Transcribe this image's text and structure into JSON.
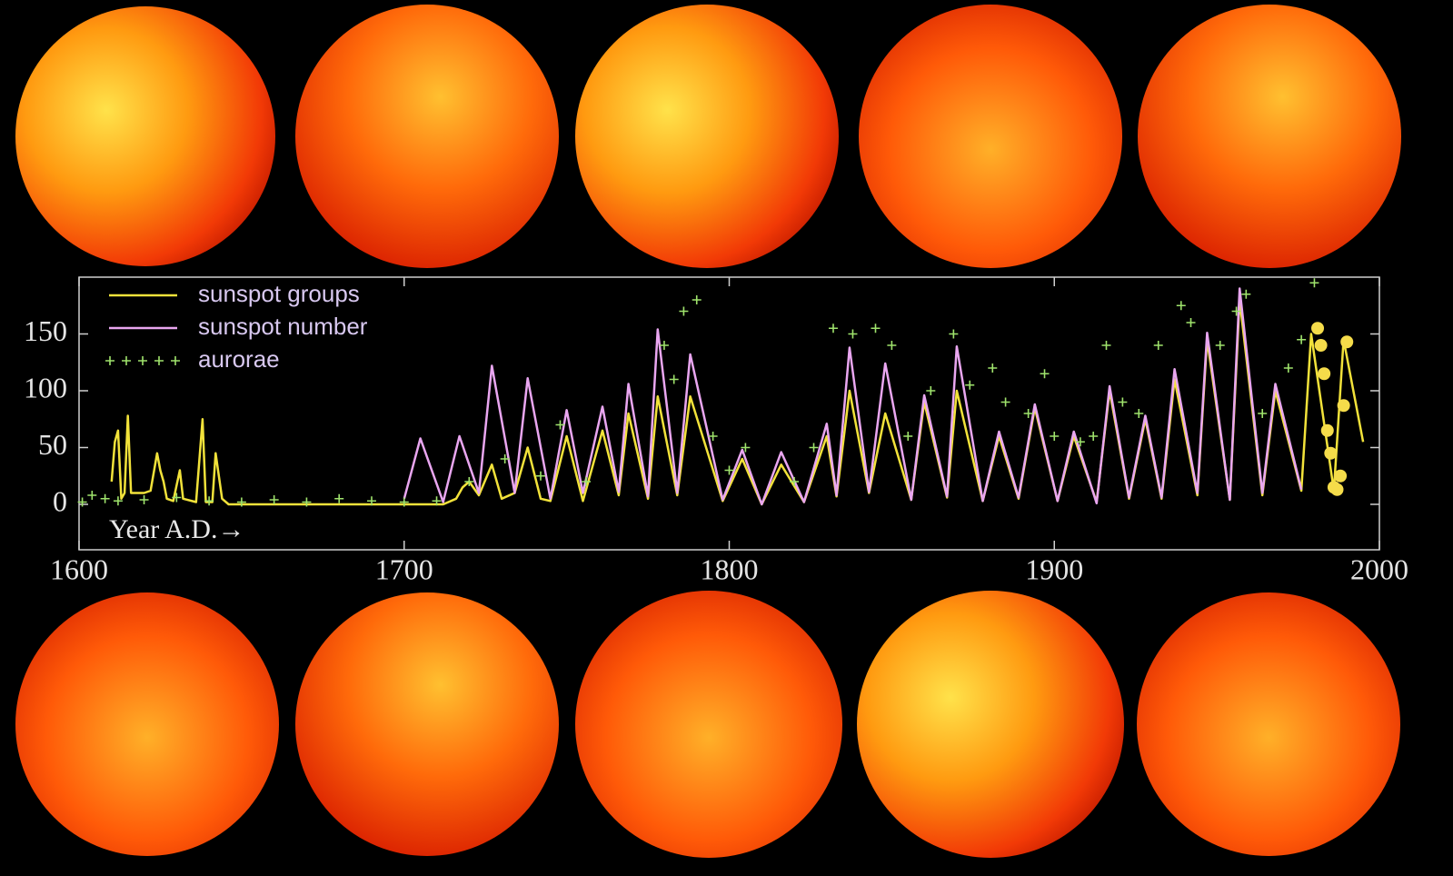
{
  "chart_data": {
    "type": "line",
    "xlabel": "Year A.D.→",
    "xlim": [
      1600,
      2000
    ],
    "xticks": [
      1600,
      1700,
      1800,
      1900,
      2000
    ],
    "ylim": [
      -40,
      200
    ],
    "yticks": [
      0,
      50,
      100,
      150
    ],
    "series": [
      {
        "name": "sunspot groups",
        "type": "line",
        "color": "#f2e23a",
        "x": [
          1610,
          1611,
          1612,
          1613,
          1614,
          1615,
          1616,
          1618,
          1620,
          1622,
          1624,
          1625,
          1626,
          1627,
          1629,
          1631,
          1632,
          1636,
          1638,
          1639,
          1641,
          1642,
          1644,
          1646,
          1700,
          1712,
          1716,
          1718,
          1720,
          1723,
          1727,
          1730,
          1734,
          1738,
          1742,
          1745,
          1750,
          1755,
          1761,
          1766,
          1769,
          1775,
          1778,
          1784,
          1788,
          1798,
          1804,
          1810,
          1816,
          1823,
          1830,
          1833,
          1837,
          1843,
          1848,
          1856,
          1860,
          1867,
          1870,
          1878,
          1883,
          1889,
          1894,
          1901,
          1906,
          1913,
          1917,
          1923,
          1928,
          1933,
          1937,
          1944,
          1947,
          1954,
          1957,
          1964,
          1968,
          1976,
          1979,
          1986,
          1989,
          1995
        ],
        "values": [
          20,
          55,
          65,
          5,
          10,
          78,
          10,
          10,
          10,
          12,
          45,
          30,
          20,
          5,
          3,
          30,
          5,
          2,
          75,
          2,
          2,
          45,
          5,
          0,
          0,
          0,
          5,
          15,
          20,
          8,
          35,
          5,
          10,
          50,
          5,
          3,
          60,
          3,
          65,
          8,
          80,
          5,
          95,
          8,
          95,
          3,
          40,
          0,
          35,
          2,
          60,
          7,
          100,
          10,
          80,
          4,
          90,
          6,
          100,
          3,
          60,
          5,
          85,
          3,
          60,
          2,
          100,
          5,
          75,
          5,
          110,
          8,
          145,
          4,
          180,
          8,
          100,
          12,
          150,
          12,
          145,
          55
        ]
      },
      {
        "name": "sunspot number",
        "type": "line",
        "color": "#e9a6f0",
        "x": [
          1700,
          1705,
          1712,
          1717,
          1723,
          1727,
          1734,
          1738,
          1745,
          1750,
          1755,
          1761,
          1766,
          1769,
          1775,
          1778,
          1784,
          1788,
          1798,
          1804,
          1810,
          1816,
          1823,
          1830,
          1833,
          1837,
          1843,
          1848,
          1856,
          1860,
          1867,
          1870,
          1878,
          1883,
          1889,
          1894,
          1901,
          1906,
          1913,
          1917,
          1923,
          1928,
          1933,
          1937,
          1944,
          1947,
          1954,
          1957,
          1964,
          1968,
          1976
        ],
        "values": [
          5,
          58,
          2,
          60,
          10,
          122,
          10,
          111,
          5,
          83,
          10,
          86,
          11,
          106,
          7,
          154,
          10,
          132,
          4,
          48,
          0,
          46,
          2,
          71,
          8,
          138,
          11,
          124,
          4,
          96,
          7,
          139,
          3,
          64,
          6,
          88,
          3,
          64,
          1,
          104,
          6,
          78,
          6,
          119,
          10,
          151,
          4,
          190,
          10,
          106,
          13
        ]
      },
      {
        "name": "aurorae",
        "type": "scatter",
        "color": "#9fe36c",
        "x": [
          1601,
          1604,
          1608,
          1612,
          1620,
          1630,
          1640,
          1650,
          1660,
          1670,
          1680,
          1690,
          1700,
          1710,
          1720,
          1731,
          1742,
          1748,
          1756,
          1780,
          1783,
          1786,
          1790,
          1795,
          1800,
          1805,
          1820,
          1826,
          1832,
          1838,
          1845,
          1850,
          1855,
          1862,
          1869,
          1874,
          1881,
          1885,
          1892,
          1897,
          1900,
          1908,
          1912,
          1916,
          1921,
          1926,
          1932,
          1939,
          1942,
          1951,
          1956,
          1959,
          1964,
          1972,
          1976,
          1980
        ],
        "values": [
          2,
          8,
          5,
          3,
          4,
          6,
          3,
          2,
          4,
          2,
          5,
          3,
          2,
          3,
          20,
          40,
          25,
          70,
          20,
          140,
          110,
          170,
          180,
          60,
          30,
          50,
          20,
          50,
          155,
          150,
          155,
          140,
          60,
          100,
          150,
          105,
          120,
          90,
          80,
          115,
          60,
          55,
          60,
          140,
          90,
          80,
          140,
          175,
          160,
          140,
          170,
          185,
          80,
          120,
          145,
          195
        ]
      },
      {
        "type": "dots",
        "color": "#f5dc4a",
        "x": [
          1981,
          1982,
          1983,
          1984,
          1985,
          1986,
          1987,
          1988,
          1989,
          1990
        ],
        "values": [
          155,
          140,
          115,
          65,
          45,
          15,
          13,
          25,
          87,
          143
        ]
      }
    ]
  }
}
